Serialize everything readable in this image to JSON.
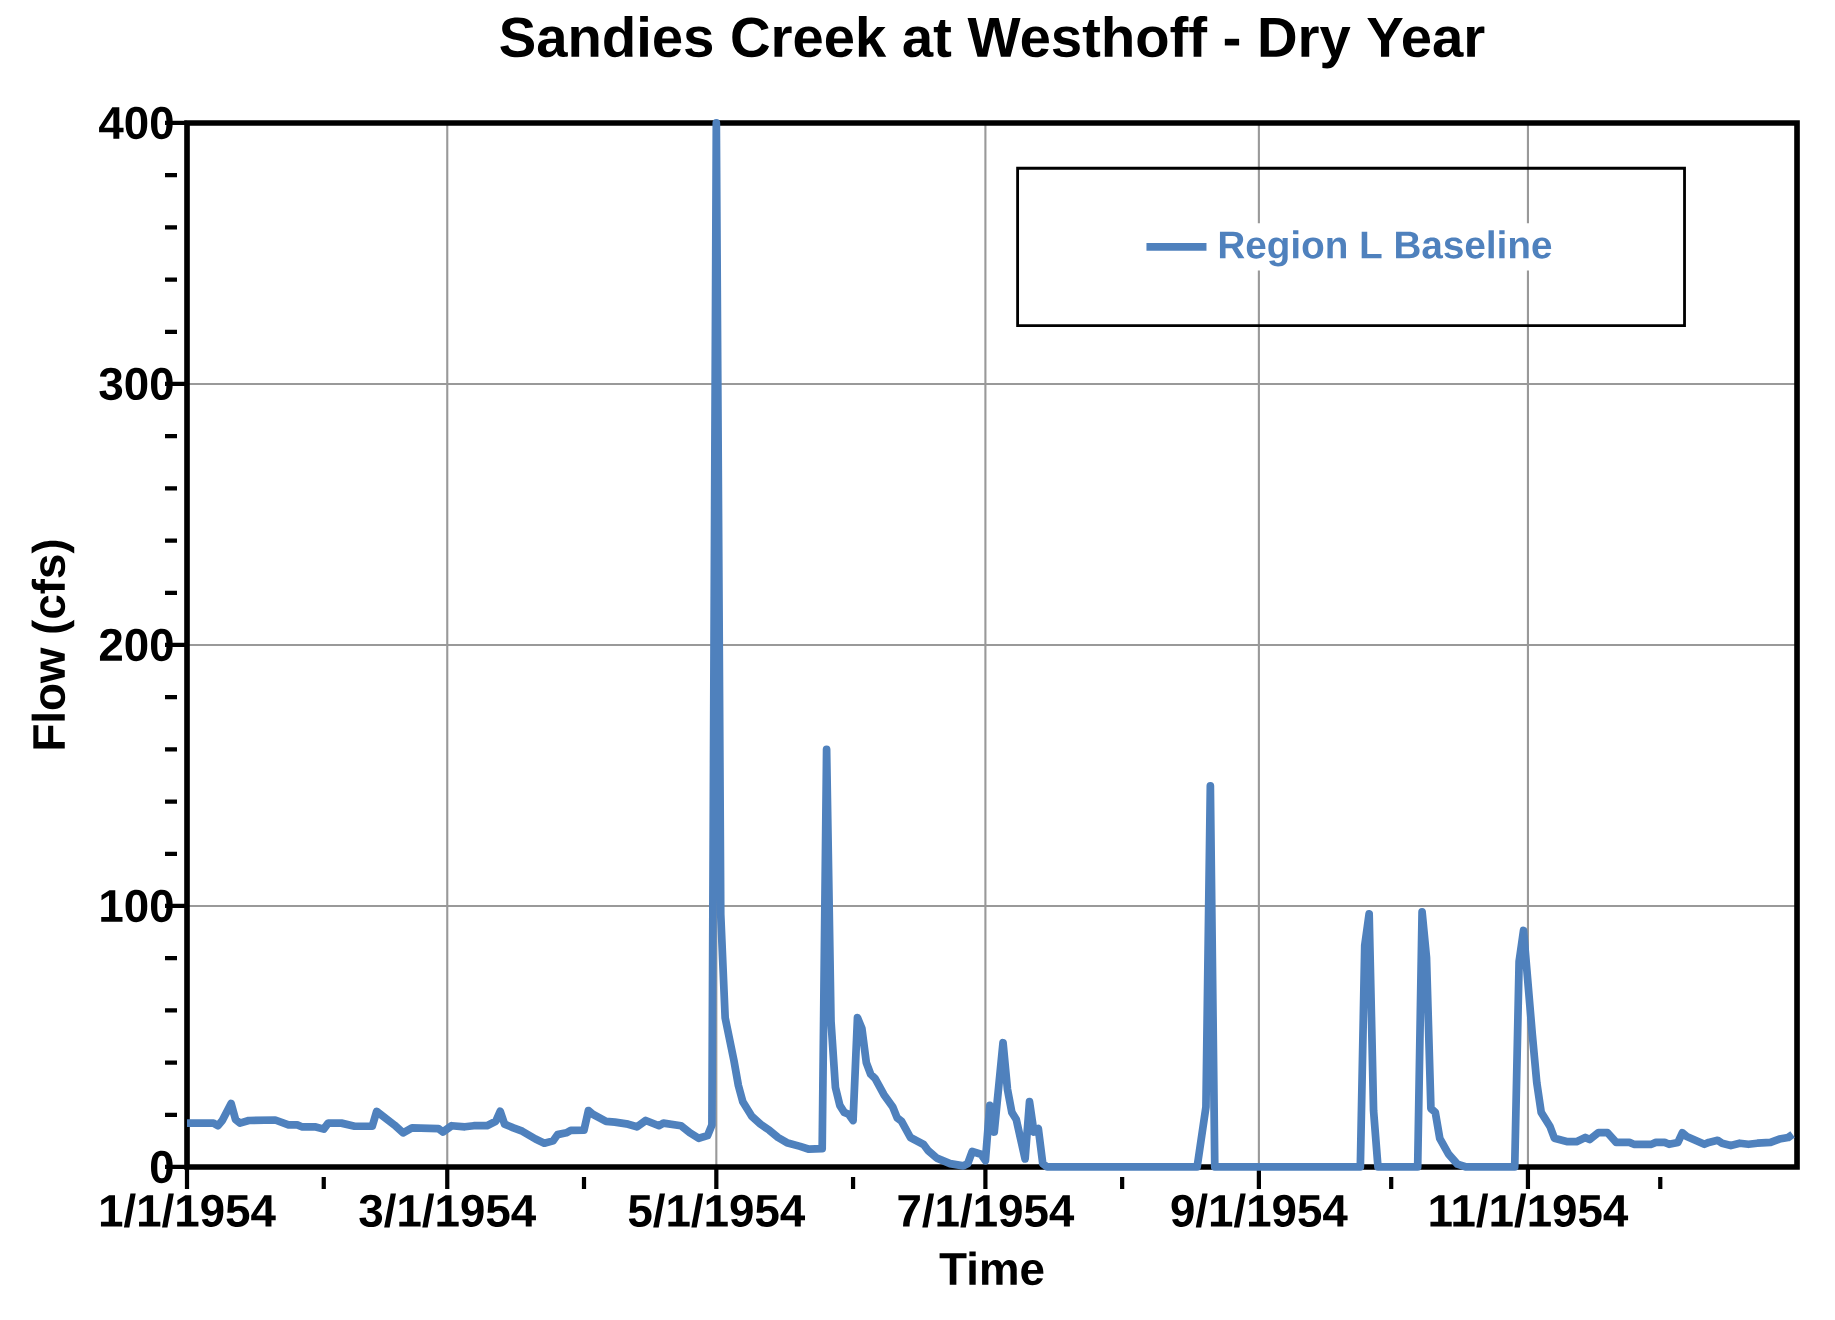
{
  "chart_data": {
    "type": "line",
    "title": "Sandies Creek at Westhoff - Dry Year",
    "xlabel": "Time",
    "ylabel": "Flow (cfs)",
    "xlim": [
      "1954-01-01",
      "1955-01-01"
    ],
    "xticks": [
      {
        "value": "1954-01-01",
        "label": "1/1/1954"
      },
      {
        "value": "1954-02-01",
        "label": null
      },
      {
        "value": "1954-03-01",
        "label": "3/1/1954"
      },
      {
        "value": "1954-04-01",
        "label": null
      },
      {
        "value": "1954-05-01",
        "label": "5/1/1954"
      },
      {
        "value": "1954-06-01",
        "label": null
      },
      {
        "value": "1954-07-01",
        "label": "7/1/1954"
      },
      {
        "value": "1954-08-01",
        "label": null
      },
      {
        "value": "1954-09-01",
        "label": "9/1/1954"
      },
      {
        "value": "1954-10-01",
        "label": null
      },
      {
        "value": "1954-11-01",
        "label": "11/1/1954"
      },
      {
        "value": "1954-12-01",
        "label": null
      }
    ],
    "ylim": [
      0,
      400
    ],
    "yticks": [
      0,
      {
        "value": 20,
        "label": null
      },
      {
        "value": 40,
        "label": null
      },
      {
        "value": 60,
        "label": null
      },
      {
        "value": 80,
        "label": null
      },
      100,
      {
        "value": 120,
        "label": null
      },
      {
        "value": 140,
        "label": null
      },
      {
        "value": 160,
        "label": null
      },
      {
        "value": 180,
        "label": null
      },
      200,
      {
        "value": 220,
        "label": null
      },
      {
        "value": 240,
        "label": null
      },
      {
        "value": 260,
        "label": null
      },
      {
        "value": 280,
        "label": null
      },
      300,
      {
        "value": 320,
        "label": null
      },
      {
        "value": 340,
        "label": null
      },
      {
        "value": 360,
        "label": null
      },
      {
        "value": 380,
        "label": null
      },
      400
    ],
    "grid": true,
    "legend": "top right",
    "series": [
      {
        "name": "Region L Baseline",
        "color": "#4f81bd",
        "x": [
          "1954-01-01",
          "1954-01-07",
          "1954-01-08",
          "1954-01-09",
          "1954-01-11",
          "1954-01-12",
          "1954-01-13",
          "1954-01-15",
          "1954-01-21",
          "1954-01-24",
          "1954-01-26",
          "1954-01-27",
          "1954-01-30",
          "1954-02-01",
          "1954-02-02",
          "1954-02-05",
          "1954-02-08",
          "1954-02-12",
          "1954-02-13",
          "1954-02-17",
          "1954-02-19",
          "1954-02-21",
          "1954-02-27",
          "1954-02-28",
          "1954-03-02",
          "1954-03-05",
          "1954-03-07",
          "1954-03-10",
          "1954-03-12",
          "1954-03-13",
          "1954-03-14",
          "1954-03-16",
          "1954-03-18",
          "1954-03-21",
          "1954-03-23",
          "1954-03-25",
          "1954-03-26",
          "1954-03-28",
          "1954-03-29",
          "1954-04-01",
          "1954-04-02",
          "1954-04-03",
          "1954-04-06",
          "1954-04-08",
          "1954-04-11",
          "1954-04-13",
          "1954-04-15",
          "1954-04-18",
          "1954-04-19",
          "1954-04-23",
          "1954-04-25",
          "1954-04-27",
          "1954-04-29",
          "1954-04-30",
          "1954-05-01",
          "1954-05-02",
          "1954-05-03",
          "1954-05-05",
          "1954-05-06",
          "1954-05-07",
          "1954-05-09",
          "1954-05-11",
          "1954-05-13",
          "1954-05-15",
          "1954-05-17",
          "1954-05-20",
          "1954-05-22",
          "1954-05-25",
          "1954-05-26",
          "1954-05-27",
          "1954-05-28",
          "1954-05-29",
          "1954-05-30",
          "1954-05-31",
          "1954-06-01",
          "1954-06-02",
          "1954-06-03",
          "1954-06-04",
          "1954-06-05",
          "1954-06-06",
          "1954-06-08",
          "1954-06-10",
          "1954-06-11",
          "1954-06-12",
          "1954-06-14",
          "1954-06-17",
          "1954-06-18",
          "1954-06-20",
          "1954-06-23",
          "1954-06-26",
          "1954-06-27",
          "1954-06-28",
          "1954-06-30",
          "1954-07-01",
          "1954-07-02",
          "1954-07-03",
          "1954-07-05",
          "1954-07-06",
          "1954-07-07",
          "1954-07-08",
          "1954-07-10",
          "1954-07-11",
          "1954-07-12",
          "1954-07-13",
          "1954-07-14",
          "1954-07-15",
          "1954-08-18",
          "1954-08-20",
          "1954-08-21",
          "1954-08-22",
          "1954-09-24",
          "1954-09-25",
          "1954-09-26",
          "1954-09-27",
          "1954-09-28",
          "1954-10-07",
          "1954-10-08",
          "1954-10-09",
          "1954-10-10",
          "1954-10-11",
          "1954-10-12",
          "1954-10-14",
          "1954-10-16",
          "1954-10-18",
          "1954-10-29",
          "1954-10-30",
          "1954-10-31",
          "1954-11-02",
          "1954-11-03",
          "1954-11-04",
          "1954-11-06",
          "1954-11-07",
          "1954-11-10",
          "1954-11-12",
          "1954-11-14",
          "1954-11-15",
          "1954-11-17",
          "1954-11-19",
          "1954-11-21",
          "1954-11-24",
          "1954-11-25",
          "1954-11-29",
          "1954-11-30",
          "1954-12-02",
          "1954-12-03",
          "1954-12-05",
          "1954-12-06",
          "1954-12-07",
          "1954-12-09",
          "1954-12-11",
          "1954-12-12",
          "1954-12-14",
          "1954-12-15",
          "1954-12-17",
          "1954-12-19",
          "1954-12-21",
          "1954-12-23",
          "1954-12-26",
          "1954-12-28",
          "1954-12-30",
          "1954-12-31"
        ],
        "values": [
          16.8,
          16.8,
          15.8,
          17.8,
          24.3,
          18.2,
          16.8,
          17.8,
          18.0,
          16.1,
          16.1,
          15.4,
          15.4,
          14.5,
          16.8,
          16.8,
          15.6,
          15.6,
          21.3,
          16.1,
          13.1,
          15,
          14.7,
          13.4,
          15.8,
          15.4,
          15.8,
          15.8,
          17.5,
          21.3,
          16.4,
          15,
          13.7,
          10.7,
          9.1,
          10,
          12.4,
          13.1,
          14,
          14.1,
          21.6,
          20.2,
          17.5,
          17.2,
          16.4,
          15.4,
          17.8,
          15.8,
          16.8,
          15.8,
          13.1,
          11,
          12,
          16.1,
          400,
          96.8,
          57.2,
          40.7,
          31.2,
          25,
          19.5,
          16.4,
          14.1,
          11.3,
          9.3,
          7.9,
          6.8,
          7,
          160,
          55.8,
          30.5,
          23.6,
          20.9,
          20.2,
          17.8,
          57.2,
          53.1,
          40,
          35.5,
          33.9,
          27.7,
          23,
          18.8,
          17.5,
          11.3,
          8.6,
          6.3,
          3.4,
          1.3,
          0.4,
          1.3,
          5.9,
          4.9,
          2.4,
          23.6,
          13.4,
          47.6,
          29.8,
          20.9,
          18.2,
          3.1,
          25,
          13.4,
          14.7,
          1.3,
          0,
          0,
          23,
          146,
          0,
          0,
          84.8,
          97,
          21.6,
          0,
          0,
          97.7,
          80.2,
          22.4,
          20.9,
          11,
          4.9,
          1.1,
          0,
          0,
          78.7,
          90.6,
          50.5,
          32.3,
          20.9,
          15.5,
          11,
          9.7,
          9.7,
          11.3,
          10.5,
          13.2,
          13.2,
          9.4,
          9.4,
          8.7,
          8.7,
          9.4,
          9.4,
          8.7,
          9.4,
          13.1,
          11.7,
          10.2,
          8.7,
          9.4,
          10.2,
          9.1,
          8.2,
          9.1,
          8.7,
          9.1,
          9.4,
          10.7,
          11.3,
          12.5
        ]
      }
    ]
  }
}
